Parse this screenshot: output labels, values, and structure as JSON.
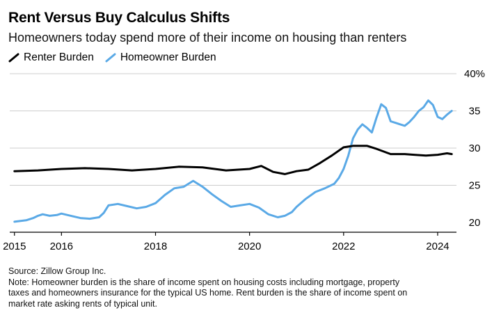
{
  "header": {
    "title": "Rent Versus Buy Calculus Shifts",
    "subtitle": "Homeowners today spend more of their income on housing than renters"
  },
  "footer": {
    "source": "Source: Zillow Group Inc.",
    "note_lines": [
      "Note: Homeowner burden is the share of income spent on housing costs including mortgage, property",
      "taxes and homeowners insurance for the typical US home. Rent burden is the share of income spent on",
      "market rate asking rents of typical unit."
    ]
  },
  "colors": {
    "renter": "#000000",
    "homeowner": "#5aa9e6",
    "grid": "#cccccc",
    "axis": "#000000"
  },
  "chart_data": {
    "type": "line",
    "xlabel": "",
    "ylabel": "",
    "xlim": [
      2014.9,
      2024.4
    ],
    "ylim": [
      20,
      40
    ],
    "yticks": [
      20,
      25,
      30,
      35,
      40
    ],
    "ytick_labels": [
      "20",
      "25",
      "30",
      "35",
      "40%"
    ],
    "xticks": [
      2015,
      2016,
      2018,
      2020,
      2022,
      2024
    ],
    "grid": true,
    "legend": "top-left",
    "series": [
      {
        "name": "Renter Burden",
        "color": "#000000",
        "x": [
          2015.0,
          2015.5,
          2016.0,
          2016.5,
          2017.0,
          2017.5,
          2018.0,
          2018.5,
          2019.0,
          2019.5,
          2020.0,
          2020.25,
          2020.5,
          2020.75,
          2021.0,
          2021.25,
          2021.5,
          2021.75,
          2022.0,
          2022.2,
          2022.5,
          2022.7,
          2023.0,
          2023.3,
          2023.5,
          2023.75,
          2024.0,
          2024.2,
          2024.3
        ],
        "values": [
          26.9,
          27.0,
          27.2,
          27.3,
          27.2,
          27.0,
          27.2,
          27.5,
          27.4,
          27.0,
          27.2,
          27.6,
          26.8,
          26.5,
          26.9,
          27.1,
          28.0,
          29.0,
          30.1,
          30.3,
          30.3,
          29.9,
          29.2,
          29.2,
          29.1,
          29.0,
          29.1,
          29.3,
          29.2
        ]
      },
      {
        "name": "Homeowner Burden",
        "color": "#5aa9e6",
        "x": [
          2015.0,
          2015.25,
          2015.4,
          2015.5,
          2015.6,
          2015.75,
          2015.9,
          2016.0,
          2016.2,
          2016.4,
          2016.6,
          2016.8,
          2016.9,
          2017.0,
          2017.2,
          2017.4,
          2017.6,
          2017.8,
          2018.0,
          2018.2,
          2018.4,
          2018.6,
          2018.8,
          2019.0,
          2019.2,
          2019.4,
          2019.6,
          2019.8,
          2020.0,
          2020.2,
          2020.4,
          2020.6,
          2020.75,
          2020.9,
          2021.0,
          2021.2,
          2021.4,
          2021.6,
          2021.8,
          2021.9,
          2022.0,
          2022.1,
          2022.2,
          2022.3,
          2022.4,
          2022.5,
          2022.6,
          2022.7,
          2022.8,
          2022.9,
          2023.0,
          2023.1,
          2023.2,
          2023.3,
          2023.4,
          2023.5,
          2023.6,
          2023.7,
          2023.8,
          2023.9,
          2024.0,
          2024.1,
          2024.2,
          2024.3
        ],
        "values": [
          20.1,
          20.3,
          20.6,
          20.9,
          21.1,
          20.9,
          21.0,
          21.2,
          20.9,
          20.6,
          20.5,
          20.7,
          21.3,
          22.3,
          22.5,
          22.2,
          21.9,
          22.1,
          22.6,
          23.7,
          24.6,
          24.8,
          25.6,
          24.8,
          23.8,
          22.9,
          22.1,
          22.3,
          22.5,
          22.0,
          21.1,
          20.7,
          20.9,
          21.4,
          22.1,
          23.2,
          24.1,
          24.6,
          25.2,
          26.0,
          27.2,
          29.0,
          31.3,
          32.5,
          33.2,
          32.7,
          32.1,
          34.1,
          35.9,
          35.4,
          33.6,
          33.4,
          33.2,
          33.0,
          33.5,
          34.2,
          35.0,
          35.5,
          36.4,
          35.8,
          34.2,
          33.9,
          34.5,
          35.0
        ]
      }
    ]
  }
}
